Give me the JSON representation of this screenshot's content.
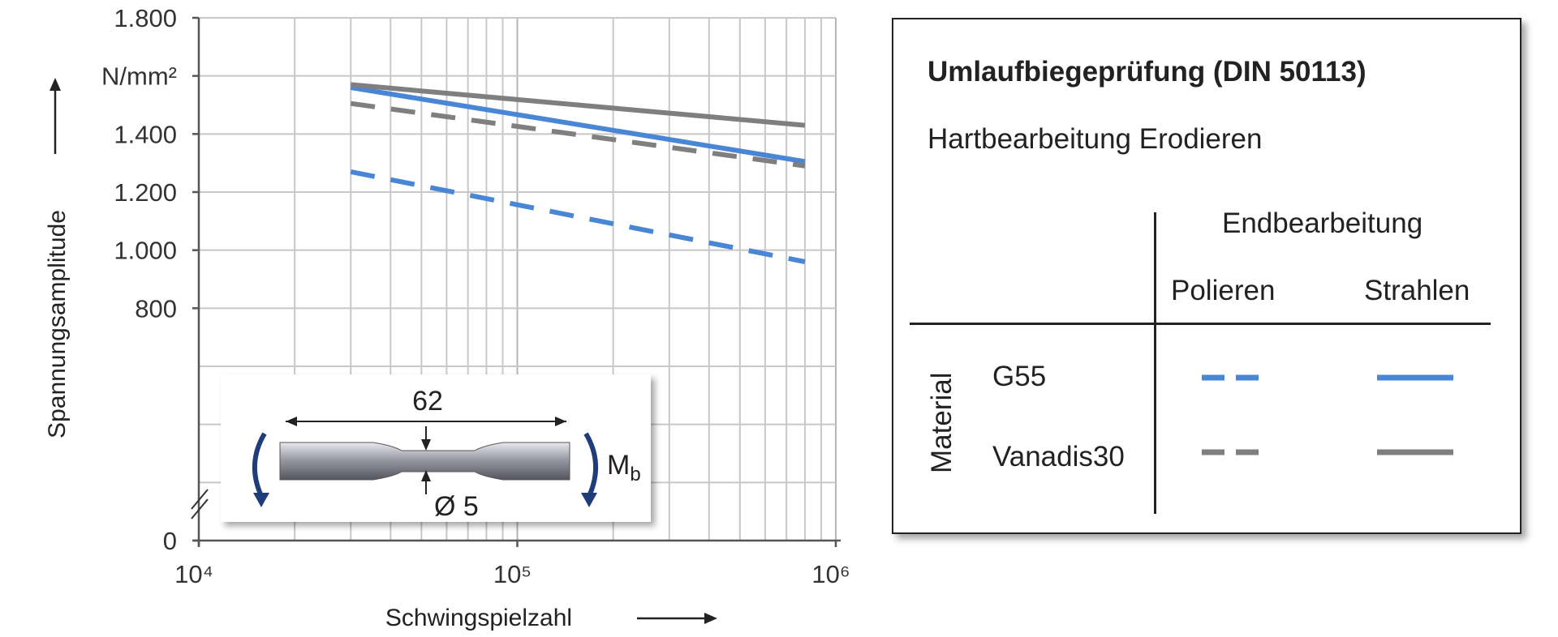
{
  "chart_data": {
    "type": "line",
    "xscale": "log",
    "xlim": [
      10000,
      1000000
    ],
    "ylim": [
      0,
      1800
    ],
    "x_tick_labels": [
      "10⁴",
      "10⁵",
      "10⁶"
    ],
    "y_tick_labels": [
      "0",
      "800",
      "1.000",
      "1.200",
      "1.400",
      "N/mm²",
      "1.800"
    ],
    "xlabel": "Schwingspielzahl",
    "ylabel": "Spannungsamplitude",
    "y_unit": "N/mm²",
    "axis_break": true,
    "grid": true,
    "series": [
      {
        "material": "G55",
        "finish": "Polieren",
        "style": "dashed",
        "color": "#4a86d6",
        "x": [
          30000,
          800000
        ],
        "y": [
          1270,
          960
        ]
      },
      {
        "material": "G55",
        "finish": "Strahlen",
        "style": "solid",
        "color": "#4a86d6",
        "x": [
          30000,
          800000
        ],
        "y": [
          1560,
          1305
        ]
      },
      {
        "material": "Vanadis30",
        "finish": "Polieren",
        "style": "dashed",
        "color": "#7f7f7f",
        "x": [
          30000,
          800000
        ],
        "y": [
          1505,
          1290
        ]
      },
      {
        "material": "Vanadis30",
        "finish": "Strahlen",
        "style": "solid",
        "color": "#7f7f7f",
        "x": [
          30000,
          800000
        ],
        "y": [
          1570,
          1430
        ]
      }
    ],
    "inset": {
      "length_label": "62",
      "diameter_label": "Ø 5",
      "moment_label": "M",
      "moment_sub": "b"
    }
  },
  "legend": {
    "title": "Umlaufbiegeprüfung  (DIN 50113)",
    "subtitle": "Hartbearbeitung  Erodieren",
    "group_header": "Endbearbeitung",
    "col_polieren": "Polieren",
    "col_strahlen": "Strahlen",
    "row_header": "Material",
    "row_g55": "G55",
    "row_vanadis": "Vanadis30"
  },
  "colors": {
    "g55": "#4a86d6",
    "vanadis": "#7f7f7f",
    "grid": "#c8c8c8"
  }
}
